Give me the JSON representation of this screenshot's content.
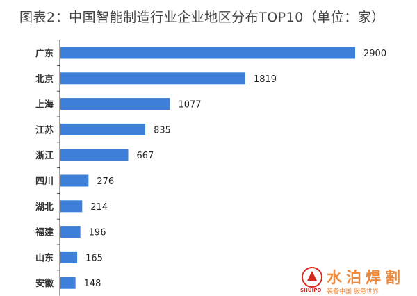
{
  "chart_data": {
    "type": "bar",
    "orientation": "horizontal",
    "title": "图表2：中国智能制造行业企业地区分布TOP10（单位：家）",
    "categories": [
      "广东",
      "北京",
      "上海",
      "江苏",
      "浙江",
      "四川",
      "湖北",
      "福建",
      "山东",
      "安徽"
    ],
    "values": [
      2900,
      1819,
      1077,
      835,
      667,
      276,
      214,
      196,
      165,
      148
    ],
    "xlim": [
      0,
      2900
    ],
    "grid": false,
    "data_labels": true,
    "bar_color": "#3d7fd9"
  },
  "watermark": {
    "name": "水泊焊割",
    "latin": "SHUIPO",
    "slogan": "装备中国 服务世界",
    "color": "#ef8a3c"
  }
}
